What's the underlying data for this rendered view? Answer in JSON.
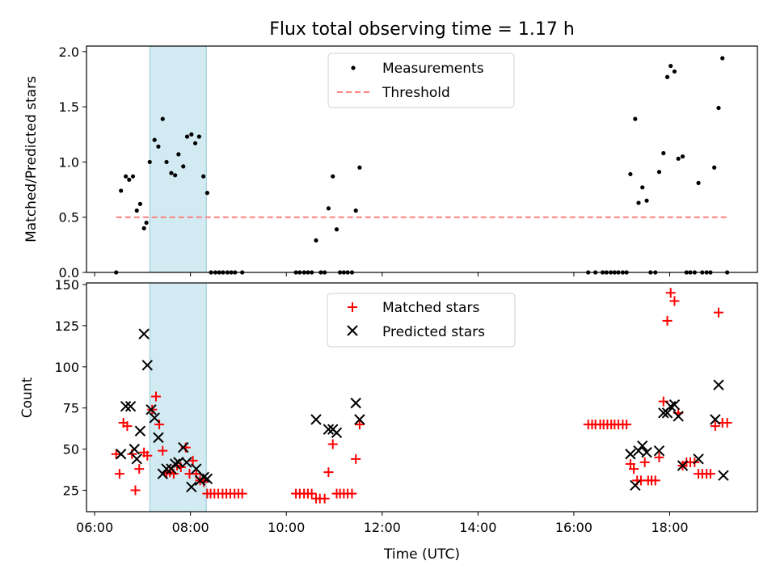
{
  "chart_data": {
    "type": "scatter",
    "title": "Flux total observing time = 1.17 h",
    "xlabel": "Time (UTC)",
    "shaded_interval": [
      7.15,
      8.33
    ],
    "colors": {
      "measurements": "#000000",
      "threshold": "#ff7f7f",
      "matched": "#ff0000",
      "predicted": "#000000",
      "shade": "#add8e6"
    },
    "top": {
      "ylabel": "Matched/Predicted stars",
      "ylim": [
        0,
        2.05
      ],
      "yticks": [
        0,
        0.5,
        1.0,
        1.5,
        2.0
      ],
      "ytick_labels": [
        "0.0",
        "0.5",
        "1.0",
        "1.5",
        "2.0"
      ],
      "legend": [
        "Measurements",
        "Threshold"
      ],
      "legend_position": "top-center",
      "threshold": {
        "value": 0.5,
        "x": [
          6.45,
          19.2
        ]
      },
      "measurements": [
        [
          6.45,
          0
        ],
        [
          6.55,
          0.74
        ],
        [
          6.65,
          0.87
        ],
        [
          6.72,
          0.84
        ],
        [
          6.8,
          0.87
        ],
        [
          6.88,
          0.56
        ],
        [
          6.95,
          0.62
        ],
        [
          7.03,
          0.4
        ],
        [
          7.08,
          0.45
        ],
        [
          7.15,
          1.0
        ],
        [
          7.25,
          1.2
        ],
        [
          7.33,
          1.14
        ],
        [
          7.42,
          1.39
        ],
        [
          7.5,
          1.0
        ],
        [
          7.6,
          0.9
        ],
        [
          7.68,
          0.88
        ],
        [
          7.75,
          1.07
        ],
        [
          7.85,
          0.96
        ],
        [
          7.93,
          1.23
        ],
        [
          8.02,
          1.25
        ],
        [
          8.1,
          1.17
        ],
        [
          8.18,
          1.23
        ],
        [
          8.27,
          0.87
        ],
        [
          8.35,
          0.72
        ],
        [
          8.43,
          0
        ],
        [
          8.52,
          0
        ],
        [
          8.6,
          0
        ],
        [
          8.68,
          0
        ],
        [
          8.77,
          0
        ],
        [
          8.85,
          0
        ],
        [
          8.93,
          0
        ],
        [
          9.08,
          0
        ],
        [
          10.2,
          0
        ],
        [
          10.28,
          0
        ],
        [
          10.37,
          0
        ],
        [
          10.45,
          0
        ],
        [
          10.53,
          0
        ],
        [
          10.62,
          0.29
        ],
        [
          10.72,
          0
        ],
        [
          10.8,
          0
        ],
        [
          10.88,
          0.58
        ],
        [
          10.97,
          0.87
        ],
        [
          11.05,
          0.39
        ],
        [
          11.12,
          0
        ],
        [
          11.2,
          0
        ],
        [
          11.28,
          0
        ],
        [
          11.37,
          0
        ],
        [
          11.45,
          0.56
        ],
        [
          11.53,
          0.95
        ],
        [
          16.3,
          0
        ],
        [
          16.45,
          0
        ],
        [
          16.6,
          0
        ],
        [
          16.68,
          0
        ],
        [
          16.77,
          0
        ],
        [
          16.85,
          0
        ],
        [
          16.93,
          0
        ],
        [
          17.02,
          0
        ],
        [
          17.1,
          0
        ],
        [
          17.18,
          0.89
        ],
        [
          17.28,
          1.39
        ],
        [
          17.35,
          0.63
        ],
        [
          17.43,
          0.77
        ],
        [
          17.52,
          0.65
        ],
        [
          17.6,
          0
        ],
        [
          17.7,
          0
        ],
        [
          17.78,
          0.91
        ],
        [
          17.87,
          1.08
        ],
        [
          17.95,
          1.77
        ],
        [
          18.02,
          1.87
        ],
        [
          18.1,
          1.82
        ],
        [
          18.18,
          1.03
        ],
        [
          18.27,
          1.05
        ],
        [
          18.35,
          0
        ],
        [
          18.43,
          0
        ],
        [
          18.52,
          0
        ],
        [
          18.6,
          0.81
        ],
        [
          18.68,
          0
        ],
        [
          18.77,
          0
        ],
        [
          18.85,
          0
        ],
        [
          18.93,
          0.95
        ],
        [
          19.02,
          1.49
        ],
        [
          19.1,
          1.94
        ],
        [
          19.2,
          0
        ]
      ]
    },
    "bottom": {
      "ylabel": "Count",
      "ylim": [
        12,
        151
      ],
      "yticks": [
        25,
        50,
        75,
        100,
        125,
        150
      ],
      "legend": [
        "Matched stars",
        "Predicted stars"
      ],
      "legend_position": "top-center",
      "matched": [
        [
          6.45,
          47
        ],
        [
          6.52,
          35
        ],
        [
          6.6,
          66
        ],
        [
          6.68,
          64
        ],
        [
          6.78,
          47
        ],
        [
          6.85,
          25
        ],
        [
          6.93,
          38
        ],
        [
          7.03,
          48
        ],
        [
          7.1,
          46
        ],
        [
          7.2,
          74
        ],
        [
          7.28,
          82
        ],
        [
          7.35,
          65
        ],
        [
          7.42,
          49
        ],
        [
          7.5,
          35
        ],
        [
          7.57,
          36
        ],
        [
          7.65,
          35
        ],
        [
          7.72,
          40
        ],
        [
          7.8,
          39
        ],
        [
          7.9,
          51
        ],
        [
          7.98,
          35
        ],
        [
          8.05,
          43
        ],
        [
          8.12,
          35
        ],
        [
          8.2,
          31
        ],
        [
          8.28,
          30
        ],
        [
          8.35,
          23
        ],
        [
          8.42,
          23
        ],
        [
          8.5,
          23
        ],
        [
          8.58,
          23
        ],
        [
          8.67,
          23
        ],
        [
          8.75,
          23
        ],
        [
          8.83,
          23
        ],
        [
          8.92,
          23
        ],
        [
          9.0,
          23
        ],
        [
          9.08,
          23
        ],
        [
          10.2,
          23
        ],
        [
          10.28,
          23
        ],
        [
          10.37,
          23
        ],
        [
          10.45,
          23
        ],
        [
          10.53,
          23
        ],
        [
          10.62,
          20
        ],
        [
          10.7,
          20
        ],
        [
          10.8,
          20
        ],
        [
          10.88,
          36
        ],
        [
          10.97,
          53
        ],
        [
          11.05,
          23
        ],
        [
          11.12,
          23
        ],
        [
          11.2,
          23
        ],
        [
          11.28,
          23
        ],
        [
          11.37,
          23
        ],
        [
          11.45,
          44
        ],
        [
          11.53,
          65
        ],
        [
          16.3,
          65
        ],
        [
          16.38,
          65
        ],
        [
          16.45,
          65
        ],
        [
          16.55,
          65
        ],
        [
          16.62,
          65
        ],
        [
          16.7,
          65
        ],
        [
          16.78,
          65
        ],
        [
          16.85,
          65
        ],
        [
          16.93,
          65
        ],
        [
          17.02,
          65
        ],
        [
          17.1,
          65
        ],
        [
          17.18,
          41
        ],
        [
          17.25,
          38
        ],
        [
          17.32,
          31
        ],
        [
          17.4,
          31
        ],
        [
          17.48,
          42
        ],
        [
          17.55,
          31
        ],
        [
          17.62,
          31
        ],
        [
          17.7,
          31
        ],
        [
          17.78,
          45
        ],
        [
          17.87,
          79
        ],
        [
          17.95,
          128
        ],
        [
          18.02,
          145
        ],
        [
          18.1,
          140
        ],
        [
          18.18,
          72
        ],
        [
          18.27,
          40
        ],
        [
          18.35,
          42
        ],
        [
          18.43,
          42
        ],
        [
          18.52,
          42
        ],
        [
          18.6,
          35
        ],
        [
          18.68,
          35
        ],
        [
          18.77,
          35
        ],
        [
          18.85,
          35
        ],
        [
          18.95,
          64
        ],
        [
          19.02,
          133
        ],
        [
          19.1,
          66
        ],
        [
          19.2,
          66
        ]
      ],
      "predicted": [
        [
          6.55,
          47
        ],
        [
          6.65,
          76
        ],
        [
          6.75,
          76
        ],
        [
          6.83,
          50
        ],
        [
          6.88,
          44
        ],
        [
          6.95,
          61
        ],
        [
          7.03,
          120
        ],
        [
          7.1,
          101
        ],
        [
          7.18,
          74
        ],
        [
          7.25,
          69
        ],
        [
          7.33,
          57
        ],
        [
          7.42,
          35
        ],
        [
          7.5,
          38
        ],
        [
          7.6,
          38
        ],
        [
          7.68,
          41
        ],
        [
          7.75,
          42
        ],
        [
          7.85,
          51
        ],
        [
          7.92,
          42
        ],
        [
          8.02,
          27
        ],
        [
          8.12,
          38
        ],
        [
          8.2,
          31
        ],
        [
          8.28,
          33
        ],
        [
          8.35,
          32
        ],
        [
          10.62,
          68
        ],
        [
          10.88,
          62
        ],
        [
          10.97,
          62
        ],
        [
          11.05,
          60
        ],
        [
          11.45,
          78
        ],
        [
          11.53,
          68
        ],
        [
          17.18,
          47
        ],
        [
          17.28,
          28
        ],
        [
          17.35,
          49
        ],
        [
          17.43,
          52
        ],
        [
          17.52,
          48
        ],
        [
          17.78,
          49
        ],
        [
          17.87,
          72
        ],
        [
          17.95,
          72
        ],
        [
          18.02,
          76
        ],
        [
          18.1,
          77
        ],
        [
          18.18,
          70
        ],
        [
          18.27,
          40
        ],
        [
          18.6,
          44
        ],
        [
          18.95,
          68
        ],
        [
          19.02,
          89
        ],
        [
          19.12,
          34
        ]
      ]
    },
    "xticks": [
      6,
      8,
      10,
      12,
      14,
      16,
      18
    ],
    "xtick_labels": [
      "06:00",
      "08:00",
      "10:00",
      "12:00",
      "14:00",
      "16:00",
      "18:00"
    ],
    "xlim": [
      5.83,
      19.83
    ]
  }
}
